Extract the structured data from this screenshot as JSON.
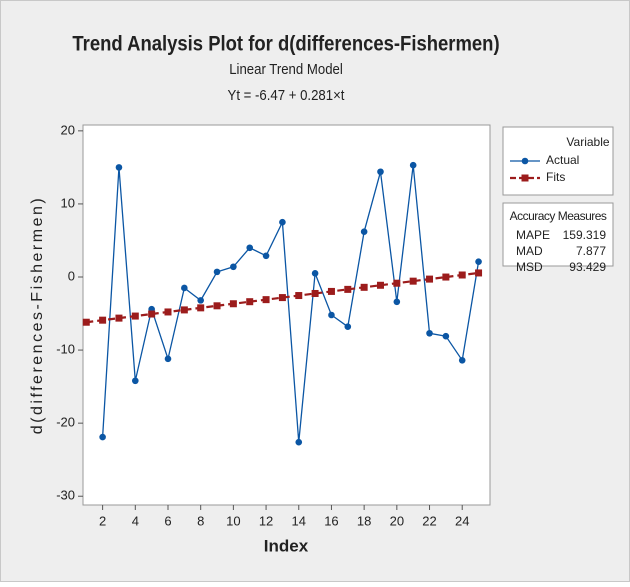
{
  "chart_data": {
    "type": "line",
    "title": "Trend Analysis Plot for d(differences-Fishermen)",
    "subtitle": "Linear Trend Model",
    "equation": "Yt = -6.47 + 0.281×t",
    "x_label": "Index",
    "y_label": "d(differences-Fishermen)",
    "x": [
      1,
      2,
      3,
      4,
      5,
      6,
      7,
      8,
      9,
      10,
      11,
      12,
      13,
      14,
      15,
      16,
      17,
      18,
      19,
      20,
      21,
      22,
      23,
      24,
      25
    ],
    "series": [
      {
        "name": "Actual",
        "color": "#0b56a4",
        "marker": "circle",
        "dashed": false,
        "values": [
          null,
          -21.9,
          15.0,
          -14.2,
          -4.4,
          -11.2,
          -1.5,
          -3.2,
          0.7,
          1.4,
          4.0,
          2.9,
          7.5,
          -22.6,
          0.5,
          -5.2,
          -6.8,
          6.2,
          14.4,
          -3.4,
          15.3,
          -7.7,
          -8.1,
          -11.4,
          2.1
        ]
      },
      {
        "name": "Fits",
        "color": "#9c1c1c",
        "marker": "square",
        "dashed": true,
        "values": [
          -6.189,
          -5.908,
          -5.627,
          -5.346,
          -5.065,
          -4.784,
          -4.503,
          -4.222,
          -3.941,
          -3.66,
          -3.379,
          -3.098,
          -2.817,
          -2.536,
          -2.255,
          -1.974,
          -1.693,
          -1.412,
          -1.131,
          -0.85,
          -0.569,
          -0.288,
          -0.007,
          0.274,
          0.555
        ]
      }
    ],
    "xlim": [
      0.8,
      25.7
    ],
    "xticks": [
      2,
      4,
      6,
      8,
      10,
      12,
      14,
      16,
      18,
      20,
      22,
      24
    ],
    "ylim": [
      -31.2,
      20.8
    ],
    "yticks": [
      -30,
      -20,
      -10,
      0,
      10,
      20
    ],
    "legend_title": "Variable",
    "accuracy": {
      "title": "Accuracy Measures",
      "rows": [
        {
          "label": "MAPE",
          "value": 159.319
        },
        {
          "label": "MAD",
          "value": 7.877
        },
        {
          "label": "MSD",
          "value": 93.429
        }
      ]
    }
  }
}
